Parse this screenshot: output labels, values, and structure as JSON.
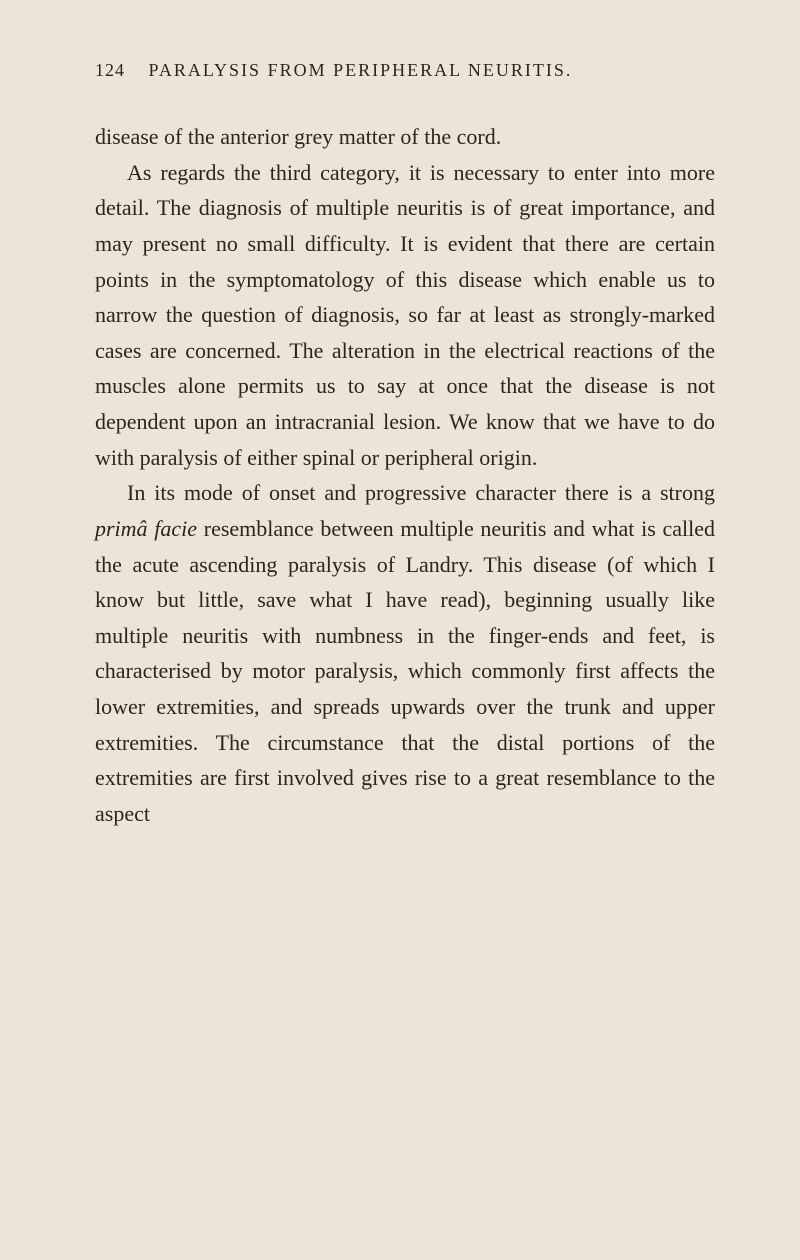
{
  "page": {
    "number": "124",
    "header_title": "PARALYSIS FROM PERIPHERAL NEURITIS.",
    "background_color": "#ebe5d8",
    "text_color": "#2a2520",
    "body_fontsize": 22,
    "header_fontsize": 18,
    "line_height": 1.62,
    "margin_mark": "*"
  },
  "paragraphs": {
    "p1": "disease of the anterior grey matter of the cord.",
    "p2_part1": "As regards the third category, it is necessary to enter into more detail. The diagnosis of multiple neuritis is of great importance, and may present no small difficulty. It is evident that there are certain points in the symptomatology of this disease which enable us to narrow the question of diagnosis, so far at least as strongly-marked cases are concerned. The alteration in the electrical reactions of the muscles alone permits us to say at once that the disease is not dependent upon an intracranial lesion. We know that we have to do with paralysis of either spinal or peripheral origin.",
    "p3_part1": "In its mode of onset and progressive character there is a strong ",
    "p3_italic": "primâ facie",
    "p3_part2": " resemblance between multiple neuritis and what is called the acute ascending paralysis of Landry. This disease (of which I know but little, save what I have read), beginning usually like multiple neuritis with numbness in the finger-ends and feet, is characterised by motor paralysis, which commonly first affects the lower extremities, and spreads upwards over the trunk and upper extremities. The circumstance that the distal portions of the extremities are first involved gives rise to a great resemblance to the aspect"
  }
}
